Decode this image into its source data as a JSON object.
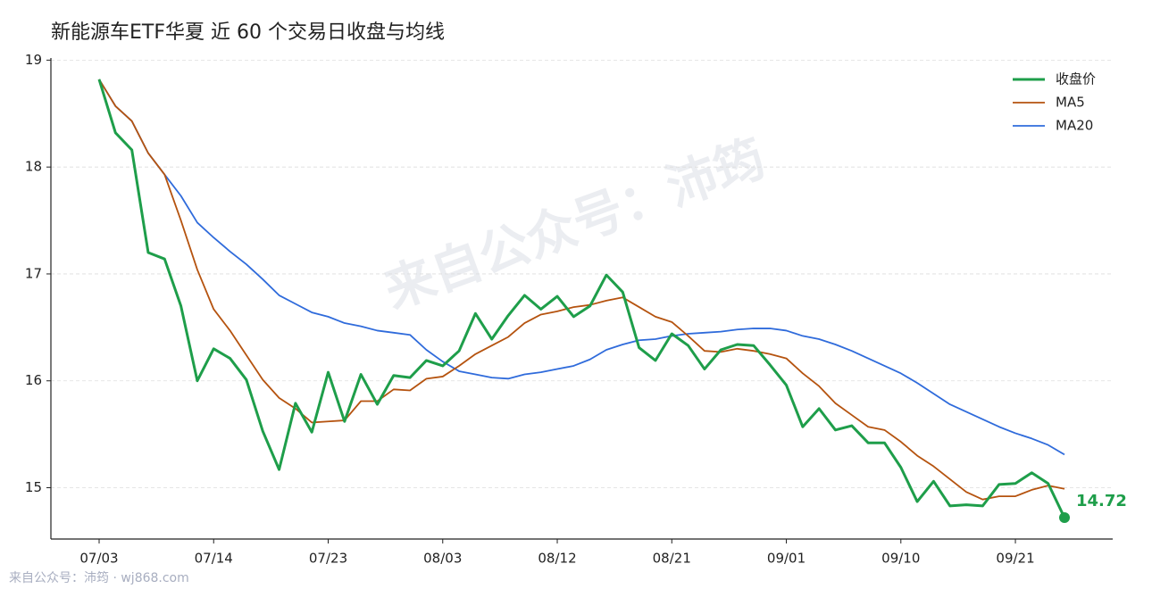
{
  "chart_data": {
    "type": "line",
    "title": "新能源车ETF华夏 近 60 个交易日收盘与均线",
    "watermark": "来自公众号：沛筠",
    "footer": "来自公众号：沛筠 · wj868.com",
    "categories": [
      "07/03",
      null,
      null,
      null,
      null,
      null,
      null,
      "07/14",
      null,
      null,
      null,
      null,
      null,
      null,
      "07/23",
      null,
      null,
      null,
      null,
      null,
      null,
      "08/03",
      null,
      null,
      null,
      null,
      null,
      null,
      "08/12",
      null,
      null,
      null,
      null,
      null,
      null,
      "08/21",
      null,
      null,
      null,
      null,
      null,
      null,
      "09/01",
      null,
      null,
      null,
      null,
      null,
      null,
      "09/10",
      null,
      null,
      null,
      null,
      null,
      null,
      "09/21",
      null,
      null,
      null
    ],
    "series": [
      {
        "name": "收盘价",
        "color": "#1e9e4a",
        "values": [
          18.82,
          18.32,
          18.16,
          17.2,
          17.14,
          16.7,
          16.0,
          16.3,
          16.21,
          16.01,
          15.53,
          15.17,
          15.79,
          15.52,
          16.08,
          15.62,
          16.06,
          15.78,
          16.05,
          16.03,
          16.19,
          16.14,
          16.28,
          16.63,
          16.39,
          16.61,
          16.8,
          16.67,
          16.79,
          16.6,
          16.7,
          16.99,
          16.83,
          16.31,
          16.19,
          16.44,
          16.33,
          16.11,
          16.29,
          16.34,
          16.33,
          16.15,
          15.96,
          15.57,
          15.74,
          15.54,
          15.58,
          15.42,
          15.42,
          15.19,
          14.87,
          15.06,
          14.83,
          14.84,
          14.83,
          15.03,
          15.04,
          15.14,
          15.04,
          14.72
        ]
      },
      {
        "name": "MA5",
        "color": "#b5530f",
        "values": [
          18.82,
          18.57,
          18.43,
          18.13,
          17.93,
          17.5,
          17.04,
          16.67,
          16.47,
          16.24,
          16.01,
          15.84,
          15.74,
          15.61,
          15.62,
          15.63,
          15.81,
          15.81,
          15.92,
          15.91,
          16.02,
          16.04,
          16.14,
          16.25,
          16.33,
          16.41,
          16.54,
          16.62,
          16.65,
          16.69,
          16.71,
          16.75,
          16.78,
          16.69,
          16.6,
          16.55,
          16.42,
          16.28,
          16.27,
          16.3,
          16.28,
          16.25,
          16.21,
          16.07,
          15.95,
          15.79,
          15.68,
          15.57,
          15.54,
          15.43,
          15.3,
          15.2,
          15.08,
          14.96,
          14.89,
          14.92,
          14.92,
          14.98,
          15.02,
          14.99
        ]
      },
      {
        "name": "MA20",
        "color": "#2f6bdb",
        "values": [
          18.82,
          18.57,
          18.43,
          18.13,
          17.93,
          17.73,
          17.48,
          17.34,
          17.21,
          17.09,
          16.95,
          16.8,
          16.72,
          16.64,
          16.6,
          16.54,
          16.51,
          16.47,
          16.45,
          16.43,
          16.29,
          16.18,
          16.09,
          16.06,
          16.03,
          16.02,
          16.06,
          16.08,
          16.11,
          16.14,
          16.2,
          16.29,
          16.34,
          16.38,
          16.39,
          16.42,
          16.44,
          16.45,
          16.46,
          16.48,
          16.49,
          16.49,
          16.47,
          16.42,
          16.39,
          16.34,
          16.28,
          16.21,
          16.14,
          16.07,
          15.98,
          15.88,
          15.78,
          15.71,
          15.64,
          15.57,
          15.51,
          15.46,
          15.4,
          15.31
        ]
      }
    ],
    "ylim": [
      14.52,
      19.02
    ],
    "yticks": [
      15,
      16,
      17,
      18,
      19
    ],
    "grid": true,
    "legend": "upper right"
  }
}
